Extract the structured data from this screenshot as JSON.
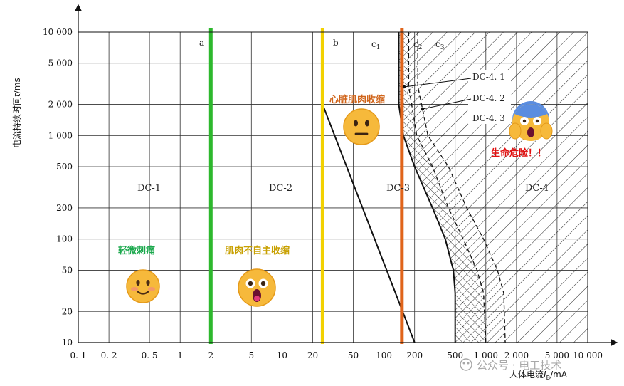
{
  "chart_data": {
    "type": "line",
    "xscale": "log",
    "yscale": "log",
    "xlim": [
      0.1,
      10000
    ],
    "ylim": [
      10,
      10000
    ],
    "xlabel_cn": "人体电流",
    "xlabel_sym": "I",
    "xlabel_sub": "B",
    "xlabel_unit": "/mA",
    "ylabel_cn": "电流持续时间",
    "ylabel_sym": "t",
    "ylabel_unit": "/ms",
    "x_ticks": [
      "0. 1",
      "0. 2",
      "0. 5",
      "1",
      "2",
      "5",
      "10",
      "20",
      "50",
      "100",
      "200",
      "500",
      "1 000",
      "2 000",
      "5 000",
      "10 000"
    ],
    "y_ticks": [
      "10",
      "20",
      "50",
      "100",
      "200",
      "500",
      "1 000",
      "2 000",
      "5 000",
      "10 000"
    ],
    "curves": [
      {
        "name": "a",
        "points": [
          [
            2,
            10
          ],
          [
            2,
            10000
          ]
        ]
      },
      {
        "name": "b",
        "points": [
          [
            25,
            10000
          ],
          [
            25,
            2000
          ],
          [
            200,
            10
          ]
        ]
      },
      {
        "name": "c1",
        "points": [
          [
            140,
            10000
          ],
          [
            140,
            2000
          ],
          [
            155,
            1000
          ],
          [
            200,
            500
          ],
          [
            300,
            200
          ],
          [
            400,
            100
          ],
          [
            480,
            50
          ],
          [
            500,
            30
          ],
          [
            500,
            10
          ]
        ]
      },
      {
        "name": "c2",
        "points": [
          [
            175,
            10000
          ],
          [
            175,
            3000
          ],
          [
            210,
            1000
          ],
          [
            300,
            500
          ],
          [
            430,
            200
          ],
          [
            600,
            100
          ],
          [
            820,
            50
          ],
          [
            950,
            30
          ],
          [
            1000,
            10
          ]
        ]
      },
      {
        "name": "c3",
        "points": [
          [
            215,
            10000
          ],
          [
            215,
            3000
          ],
          [
            270,
            1000
          ],
          [
            430,
            500
          ],
          [
            650,
            200
          ],
          [
            950,
            100
          ],
          [
            1300,
            50
          ],
          [
            1500,
            30
          ],
          [
            1550,
            10
          ]
        ]
      }
    ],
    "curve_labels": [
      "a",
      "b",
      "c",
      "c",
      "c"
    ],
    "curve_label_subs": [
      "",
      "",
      "1",
      "2",
      "3"
    ],
    "zones": [
      "DC-1",
      "DC-2",
      "DC-3",
      "DC-4"
    ],
    "dc4_subzones": [
      "DC-4. 1",
      "DC-4. 2",
      "DC-4. 3"
    ],
    "threshold_lines": [
      {
        "x": 2,
        "color": "#2db82d"
      },
      {
        "x": 25,
        "color": "#f2d100"
      },
      {
        "x": 150,
        "color": "#e0641a"
      }
    ],
    "annotations": [
      {
        "text": "轻微刺痛",
        "color": "#1aa84c"
      },
      {
        "text": "肌肉不自主收缩",
        "color": "#c8a000"
      },
      {
        "text": "心脏肌肉收缩",
        "color": "#d0641a"
      },
      {
        "text": "生命危险！！",
        "color": "#e01010"
      }
    ],
    "emojis": [
      "smiling-face-emoji",
      "shocked-face-emoji",
      "neutral-face-emoji",
      "screaming-face-emoji"
    ]
  },
  "watermark": "公众号 · 电工技术"
}
